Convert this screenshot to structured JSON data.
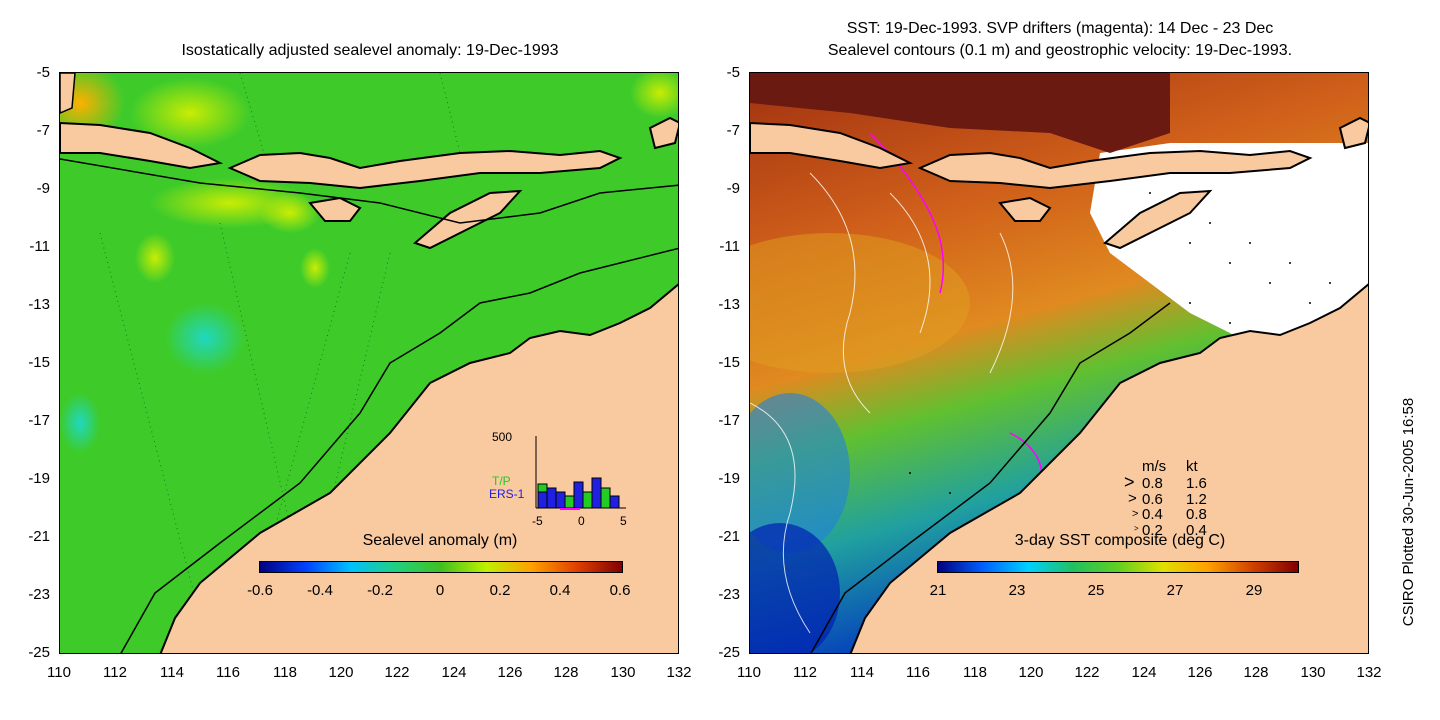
{
  "left_panel": {
    "title": "Isostatically adjusted sealevel anomaly: 19-Dec-1993",
    "y_ticks": [
      "-5",
      "-7",
      "-9",
      "-11",
      "-13",
      "-15",
      "-17",
      "-19",
      "-21",
      "-23",
      "-25"
    ],
    "x_ticks": [
      "110",
      "112",
      "114",
      "116",
      "118",
      "120",
      "122",
      "124",
      "126",
      "128",
      "130",
      "132"
    ],
    "colorbar": {
      "label": "Sealevel anomaly (m)",
      "ticks": [
        "-0.6",
        "-0.4",
        "-0.2",
        "0",
        "0.2",
        "0.4",
        "0.6"
      ],
      "colors": [
        "#00007f",
        "#0040ff",
        "#00c0ff",
        "#20d080",
        "#40c020",
        "#c0f000",
        "#ffa000",
        "#e04000",
        "#800000"
      ]
    },
    "histogram": {
      "y_label": "500",
      "tp_label": "T/P",
      "ers_label": "ERS-1",
      "x_ticks": [
        "-5",
        "0",
        "5"
      ],
      "tp_color": "#22cc22",
      "ers_color": "#2020e0"
    }
  },
  "right_panel": {
    "title_line1": "SST: 19-Dec-1993. SVP drifters (magenta): 14 Dec - 23 Dec",
    "title_line2": "Sealevel contours (0.1 m) and geostrophic velocity: 19-Dec-1993.",
    "y_ticks": [
      "-5",
      "-7",
      "-9",
      "-11",
      "-13",
      "-15",
      "-17",
      "-19",
      "-21",
      "-23",
      "-25"
    ],
    "x_ticks": [
      "110",
      "112",
      "114",
      "116",
      "118",
      "120",
      "122",
      "124",
      "126",
      "128",
      "130",
      "132"
    ],
    "colorbar": {
      "label": "3-day SST composite (deg C)",
      "ticks": [
        "21",
        "23",
        "25",
        "27",
        "29"
      ],
      "colors": [
        "#00007f",
        "#0060ff",
        "#00d0ff",
        "#20c060",
        "#60d020",
        "#e0e000",
        "#ffa000",
        "#d04000",
        "#800000"
      ]
    },
    "velocity_legend": {
      "header_ms": "m/s",
      "header_kt": "kt",
      "rows": [
        {
          "ms": "0.8",
          "kt": "1.6"
        },
        {
          "ms": "0.6",
          "kt": "1.2"
        },
        {
          "ms": "0.4",
          "kt": "0.8"
        },
        {
          "ms": "0.2",
          "kt": "0.4"
        }
      ]
    }
  },
  "footer": {
    "credit": "CSIRO Plotted 30-Jun-2005 16:58"
  },
  "colors": {
    "land": "#f9c9a0",
    "ocean_green": "#3ecb2a",
    "sst_orange": "#d96a1a"
  }
}
